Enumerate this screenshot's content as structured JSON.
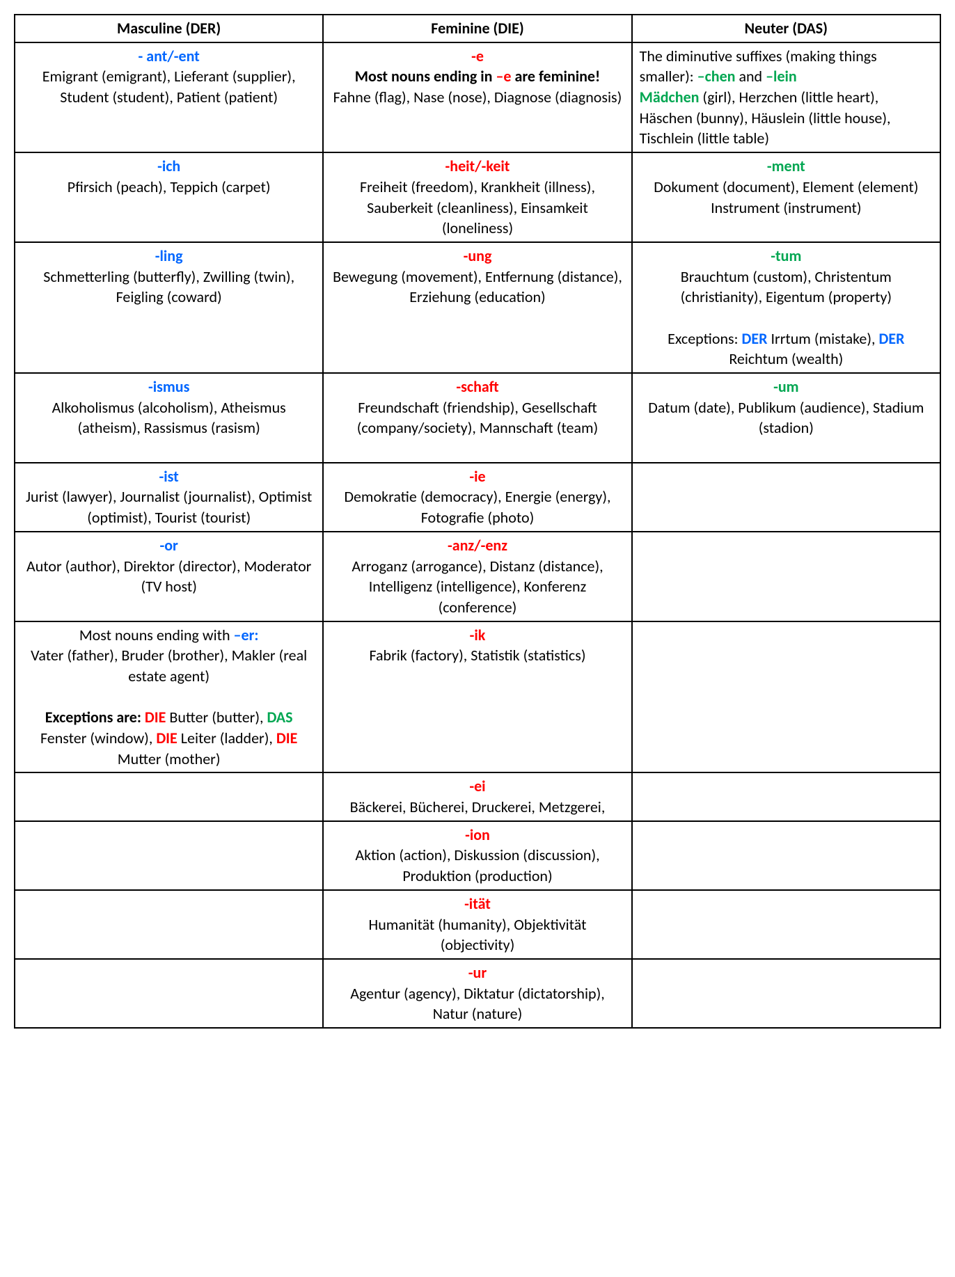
{
  "colors": {
    "masculine": "#0066ff",
    "feminine": "#ff0000",
    "neuter": "#00a651",
    "text": "#000000",
    "border": "#000000",
    "background": "#ffffff"
  },
  "table": {
    "headers": [
      "Masculine (DER)",
      "Feminine (DIE)",
      "Neuter (DAS)"
    ],
    "rows": [
      {
        "masc": {
          "suffix": "- ant/-ent",
          "body_html": "Emigrant (emigrant), Lieferant (supplier), Student (student), Patient (patient)",
          "align": "center"
        },
        "fem": {
          "suffix": "-e",
          "body_html": "<span class='bold'>Most nouns ending in <span class='red'>–e</span> are feminine!</span><br>Fahne (flag), Nase (nose), Diagnose (diagnosis)",
          "align": "center"
        },
        "neut": {
          "suffix": "",
          "body_html": "The diminutive suffixes (making things smaller): <span class='green bold'>–chen</span> and <span class='green bold'>–lein</span><br><span class='green bold'>Mädchen</span> (girl), Herzchen (little heart), Häschen (bunny), Häuslein (little house), Tischlein (little table)",
          "align": "left"
        }
      },
      {
        "masc": {
          "suffix": "-ich",
          "body_html": "Pfirsich (peach), Teppich (carpet)",
          "align": "center"
        },
        "fem": {
          "suffix": "-heit/-keit",
          "body_html": "Freiheit (freedom), Krankheit (illness), Sauberkeit (cleanliness), Einsamkeit (loneliness)",
          "align": "center"
        },
        "neut": {
          "suffix": "-ment",
          "body_html": "Dokument (document), Element (element) Instrument (instrument)",
          "align": "center"
        }
      },
      {
        "masc": {
          "suffix": "-ling",
          "body_html": "Schmetterling (butterfly), Zwilling (twin), Feigling (coward)",
          "align": "center"
        },
        "fem": {
          "suffix": "-ung",
          "body_html": "Bewegung (movement), Entfernung (distance), Erziehung (education)",
          "align": "center"
        },
        "neut": {
          "suffix": "-tum",
          "body_html": "Brauchtum (custom), Christentum (christianity), Eigentum (property)<br><br>Exceptions: <span class='blue bold'>DER</span> Irrtum (mistake), <span class='blue bold'>DER</span> Reichtum (wealth)",
          "align": "center"
        }
      },
      {
        "masc": {
          "suffix": "-ismus",
          "body_html": "Alkoholismus (alcoholism), Atheismus (atheism), Rassismus (rasism)",
          "align": "center"
        },
        "fem": {
          "suffix": "-schaft",
          "body_html": "Freundschaft (friendship), Gesellschaft (company/society), Mannschaft (team)<br>&nbsp;",
          "align": "center"
        },
        "neut": {
          "suffix": "-um",
          "body_html": "Datum (date), Publikum (audience), Stadium (stadion)",
          "align": "center"
        }
      },
      {
        "masc": {
          "suffix": "-ist",
          "body_html": "Jurist (lawyer), Journalist (journalist), Optimist (optimist), Tourist (tourist)",
          "align": "center"
        },
        "fem": {
          "suffix": "-ie",
          "body_html": "Demokratie (democracy), Energie (energy), Fotografie (photo)",
          "align": "center"
        },
        "neut": {
          "suffix": "",
          "body_html": "",
          "align": "center"
        }
      },
      {
        "masc": {
          "suffix": "-or",
          "body_html": "Autor (author), Direktor (director), Moderator (TV host)",
          "align": "center"
        },
        "fem": {
          "suffix": "-anz/-enz",
          "body_html": "Arroganz (arrogance), Distanz (distance), Intelligenz (intelligence), Konferenz (conference)",
          "align": "center"
        },
        "neut": {
          "suffix": "",
          "body_html": "",
          "align": "center"
        }
      },
      {
        "masc": {
          "suffix": "",
          "body_html": "Most nouns ending with <span class='blue bold'>–er:</span><br>Vater (father), Bruder (brother), Makler (real estate agent)<br><br><span class='bold'>Exceptions are: <span class='red'>DIE</span></span> Butter (butter), <span class='green bold'>DAS</span> Fenster (window), <span class='red bold'>DIE</span> Leiter (ladder), <span class='red bold'>DIE</span> Mutter (mother)",
          "align": "center"
        },
        "fem": {
          "suffix": "-ik",
          "body_html": "Fabrik (factory), Statistik (statistics)",
          "align": "center"
        },
        "neut": {
          "suffix": "",
          "body_html": "",
          "align": "center"
        }
      },
      {
        "masc": {
          "suffix": "",
          "body_html": "",
          "align": "center"
        },
        "fem": {
          "suffix": "-ei",
          "body_html": "Bäckerei, Bücherei, Druckerei, Metzgerei,",
          "align": "center"
        },
        "neut": {
          "suffix": "",
          "body_html": "",
          "align": "center"
        }
      },
      {
        "masc": {
          "suffix": "",
          "body_html": "",
          "align": "center"
        },
        "fem": {
          "suffix": "-ion",
          "body_html": "Aktion (action), Diskussion (discussion), Produktion (production)",
          "align": "center"
        },
        "neut": {
          "suffix": "",
          "body_html": "",
          "align": "center"
        }
      },
      {
        "masc": {
          "suffix": "",
          "body_html": "",
          "align": "center"
        },
        "fem": {
          "suffix": "-ität",
          "body_html": "Humanität (humanity), Objektivität (objectivity)",
          "align": "center"
        },
        "neut": {
          "suffix": "",
          "body_html": "",
          "align": "center"
        }
      },
      {
        "masc": {
          "suffix": "",
          "body_html": "",
          "align": "center"
        },
        "fem": {
          "suffix": "-ur",
          "body_html": "Agentur (agency), Diktatur (dictatorship), Natur (nature)",
          "align": "center"
        },
        "neut": {
          "suffix": "",
          "body_html": "",
          "align": "center"
        }
      }
    ]
  }
}
